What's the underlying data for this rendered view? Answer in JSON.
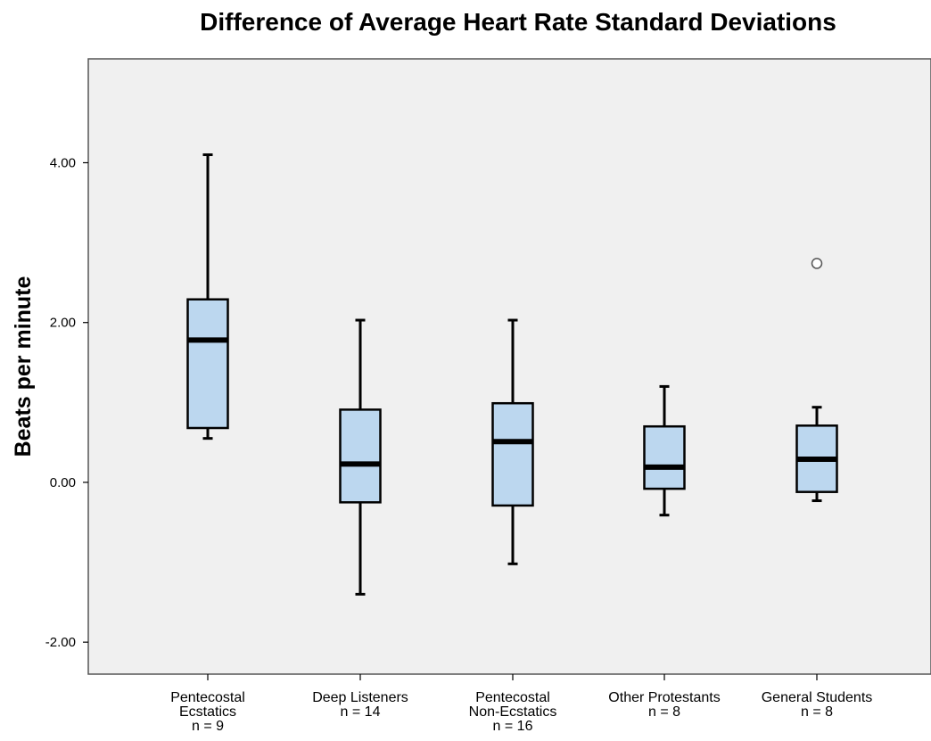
{
  "chart_data": {
    "type": "boxplot",
    "title": "Difference of Average Heart Rate Standard Deviations",
    "xlabel": "",
    "ylabel": "Beats per minute",
    "ylim": [
      -2.4,
      5.3
    ],
    "yticks": [
      4.0,
      2.0,
      0.0,
      -2.0
    ],
    "ytick_labels": [
      "4.00",
      "2.00",
      "0.00",
      "-2.00"
    ],
    "grid": false,
    "categories": [
      {
        "lines": [
          "Pentecostal",
          "Ecstatics",
          "n = 9"
        ],
        "min": 0.55,
        "q1": 0.68,
        "median": 1.78,
        "q3": 2.29,
        "max": 4.1,
        "outliers": []
      },
      {
        "lines": [
          "Deep Listeners",
          "n = 14"
        ],
        "min": -1.4,
        "q1": -0.25,
        "median": 0.23,
        "q3": 0.91,
        "max": 2.03,
        "outliers": []
      },
      {
        "lines": [
          "Pentecostal",
          "Non-Ecstatics",
          "n = 16"
        ],
        "min": -1.02,
        "q1": -0.29,
        "median": 0.51,
        "q3": 0.99,
        "max": 2.03,
        "outliers": []
      },
      {
        "lines": [
          "Other Protestants",
          "n = 8"
        ],
        "min": -0.41,
        "q1": -0.08,
        "median": 0.19,
        "q3": 0.7,
        "max": 1.2,
        "outliers": []
      },
      {
        "lines": [
          "General Students",
          "n = 8"
        ],
        "min": -0.23,
        "q1": -0.12,
        "median": 0.29,
        "q3": 0.71,
        "max": 0.94,
        "outliers": [
          2.74
        ]
      }
    ],
    "colors": {
      "box_fill": "#bcd7ef",
      "plot_bg": "#f0f0f0",
      "stroke": "#000000",
      "outlier": "#555555"
    }
  }
}
